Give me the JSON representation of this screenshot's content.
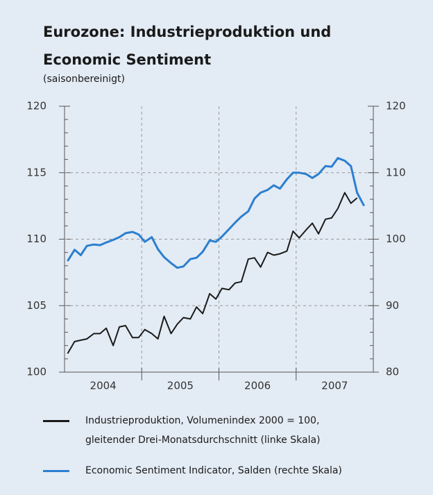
{
  "chart_data": {
    "type": "line",
    "title": "Eurozone: Industrieproduktion und Economic Sentiment",
    "subtitle": "(saisonbereinigt)",
    "x": [
      2004.04,
      2004.13,
      2004.21,
      2004.29,
      2004.38,
      2004.46,
      2004.54,
      2004.63,
      2004.71,
      2004.79,
      2004.88,
      2004.96,
      2005.04,
      2005.13,
      2005.21,
      2005.29,
      2005.38,
      2005.46,
      2005.54,
      2005.63,
      2005.71,
      2005.79,
      2005.88,
      2005.96,
      2006.04,
      2006.13,
      2006.21,
      2006.29,
      2006.38,
      2006.46,
      2006.54,
      2006.63,
      2006.71,
      2006.79,
      2006.88,
      2006.96,
      2007.04,
      2007.13,
      2007.21,
      2007.29,
      2007.38,
      2007.46,
      2007.54,
      2007.63,
      2007.71,
      2007.79,
      2007.88
    ],
    "series": [
      {
        "name": "Industrieproduktion, Volumenindex 2000 = 100, gleitender Drei-Monatsdurchschnitt (linke Skala)",
        "color": "#1a1a1a",
        "axis": "y",
        "values": [
          101.4,
          102.3,
          102.4,
          102.5,
          102.9,
          102.9,
          103.3,
          102.0,
          103.4,
          103.5,
          102.6,
          102.6,
          103.2,
          102.9,
          102.5,
          104.2,
          102.9,
          103.6,
          104.1,
          104.0,
          104.9,
          104.4,
          105.9,
          105.5,
          106.3,
          106.2,
          106.7,
          106.8,
          108.5,
          108.6,
          107.9,
          109.0,
          108.8,
          108.9,
          109.1,
          110.6,
          110.1,
          110.7,
          111.2,
          110.4,
          111.5,
          111.6,
          112.3,
          113.5,
          112.7,
          113.1,
          null
        ]
      },
      {
        "name": "Economic Sentiment Indicator, Salden (rechte Skala)",
        "color": "#2b7fd0",
        "axis": "y2",
        "values": [
          96.7,
          98.4,
          97.6,
          99.0,
          99.2,
          99.1,
          99.5,
          99.9,
          100.3,
          100.9,
          101.1,
          100.7,
          99.6,
          100.3,
          98.5,
          97.3,
          96.4,
          95.7,
          95.9,
          97.0,
          97.2,
          98.1,
          99.8,
          99.6,
          100.4,
          101.5,
          102.5,
          103.4,
          104.2,
          106.1,
          107.0,
          107.4,
          108.1,
          107.6,
          109.0,
          110.0,
          110.0,
          109.8,
          109.2,
          109.8,
          111.0,
          110.9,
          112.2,
          111.8,
          111.0,
          107.0,
          105.0
        ]
      }
    ],
    "xlim": [
      2004,
      2008
    ],
    "xticks": [
      {
        "value": 2004.5,
        "label": "2004"
      },
      {
        "value": 2005.5,
        "label": "2005"
      },
      {
        "value": 2006.5,
        "label": "2006"
      },
      {
        "value": 2007.5,
        "label": "2007"
      }
    ],
    "xgrid": [
      2005,
      2006,
      2007
    ],
    "ylim": [
      100,
      120
    ],
    "yticks": [
      100,
      105,
      110,
      115,
      120
    ],
    "y2lim": [
      80,
      120
    ],
    "y2ticks": [
      80,
      90,
      100,
      110,
      120
    ],
    "grid": true
  }
}
